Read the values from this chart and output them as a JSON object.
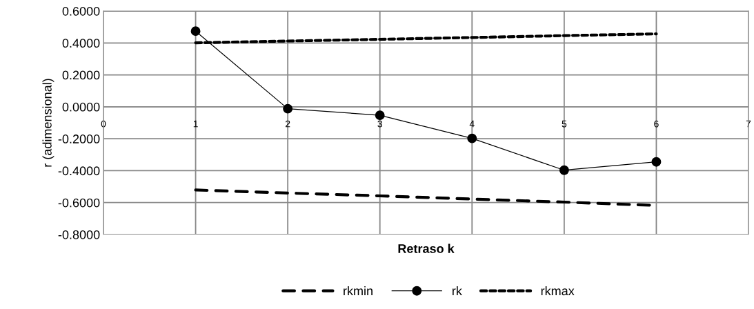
{
  "chart_data": {
    "type": "line",
    "xlabel": "Retraso k",
    "ylabel": "r (adimensional)",
    "x": [
      1,
      2,
      3,
      4,
      5,
      6
    ],
    "series": [
      {
        "name": "rkmin",
        "color": "#000000",
        "line_style": "dashed",
        "marker": "none",
        "values": [
          -0.521,
          -0.54,
          -0.558,
          -0.578,
          -0.597,
          -0.618
        ]
      },
      {
        "name": "rk",
        "color": "#000000",
        "line_style": "solid",
        "marker": "circle",
        "values": [
          0.474,
          -0.012,
          -0.053,
          -0.198,
          -0.397,
          -0.345
        ]
      },
      {
        "name": "rkmax",
        "color": "#000000",
        "line_style": "dotted",
        "marker": "none",
        "values": [
          0.401,
          0.412,
          0.423,
          0.434,
          0.446,
          0.457
        ]
      }
    ],
    "xlim": [
      0,
      7
    ],
    "xticks": [
      0,
      1,
      2,
      3,
      4,
      5,
      6,
      7
    ],
    "ylim": [
      -0.8,
      0.6
    ],
    "yticks": [
      {
        "value": -0.8,
        "label": "-0.8000"
      },
      {
        "value": -0.6,
        "label": "-0.6000"
      },
      {
        "value": -0.4,
        "label": "-0.4000"
      },
      {
        "value": -0.2,
        "label": "-0.2000"
      },
      {
        "value": 0,
        "label": "0.0000"
      },
      {
        "value": 0.2,
        "label": "0.2000"
      },
      {
        "value": 0.4,
        "label": "0.4000"
      },
      {
        "value": 0.6,
        "label": "0.6000"
      }
    ],
    "grid": true,
    "legend": "bottom"
  }
}
